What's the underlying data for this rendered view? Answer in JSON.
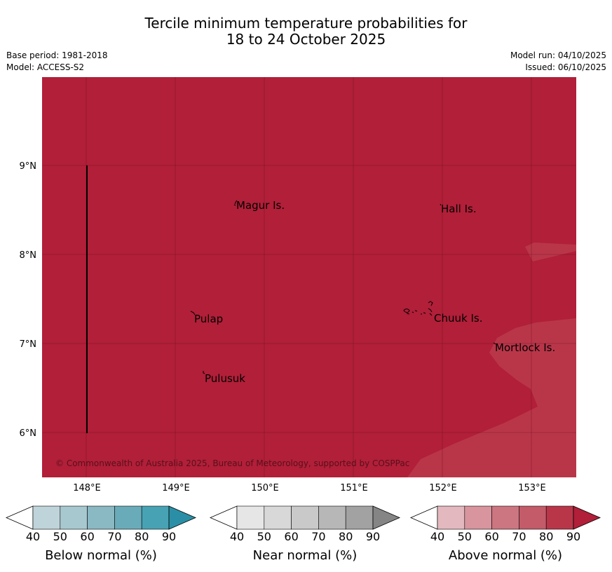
{
  "title": {
    "line1": "Tercile minimum temperature probabilities for",
    "line2": "18 to 24 October 2025"
  },
  "meta": {
    "base_period": "Base period: 1981-2018",
    "model": "Model: ACCESS-S2",
    "model_run": "Model run: 04/10/2025",
    "issued": "Issued: 06/10/2025"
  },
  "map": {
    "lon_ticks": [
      "148°E",
      "149°E",
      "150°E",
      "151°E",
      "152°E",
      "153°E"
    ],
    "lat_ticks": [
      "9°N",
      "8°N",
      "7°N",
      "6°N"
    ],
    "places": [
      "Magur Is.",
      "Hall Is.",
      "Pulap",
      "Chuuk Is.",
      "Mortlock Is.",
      "Pulusuk"
    ],
    "copyright": "© Commonwealth of Australia 2025, Bureau of Meteorology, supported by COSPPac",
    "colors": {
      "above_80_90": "#b11f38",
      "above_70_80": "#b93649",
      "grid": "#6e0f1e",
      "line": "#000000"
    }
  },
  "legends": [
    {
      "label": "Below normal (%)",
      "ticks": [
        "40",
        "50",
        "60",
        "70",
        "80",
        "90"
      ],
      "colors": [
        "#ffffff",
        "#bfd4da",
        "#a7c8cf",
        "#8ab8c3",
        "#6aabb9",
        "#47a3b4",
        "#2a8fa6"
      ]
    },
    {
      "label": "Near normal (%)",
      "ticks": [
        "40",
        "50",
        "60",
        "70",
        "80",
        "90"
      ],
      "colors": [
        "#ffffff",
        "#e6e6e6",
        "#d8d8d8",
        "#c9c9c9",
        "#b7b7b7",
        "#a2a2a2",
        "#858585"
      ]
    },
    {
      "label": "Above normal (%)",
      "ticks": [
        "40",
        "50",
        "60",
        "70",
        "80",
        "90"
      ],
      "colors": [
        "#ffffff",
        "#e3b8bf",
        "#d8959e",
        "#cc7681",
        "#c35b69",
        "#b93649",
        "#b11f38"
      ]
    }
  ]
}
